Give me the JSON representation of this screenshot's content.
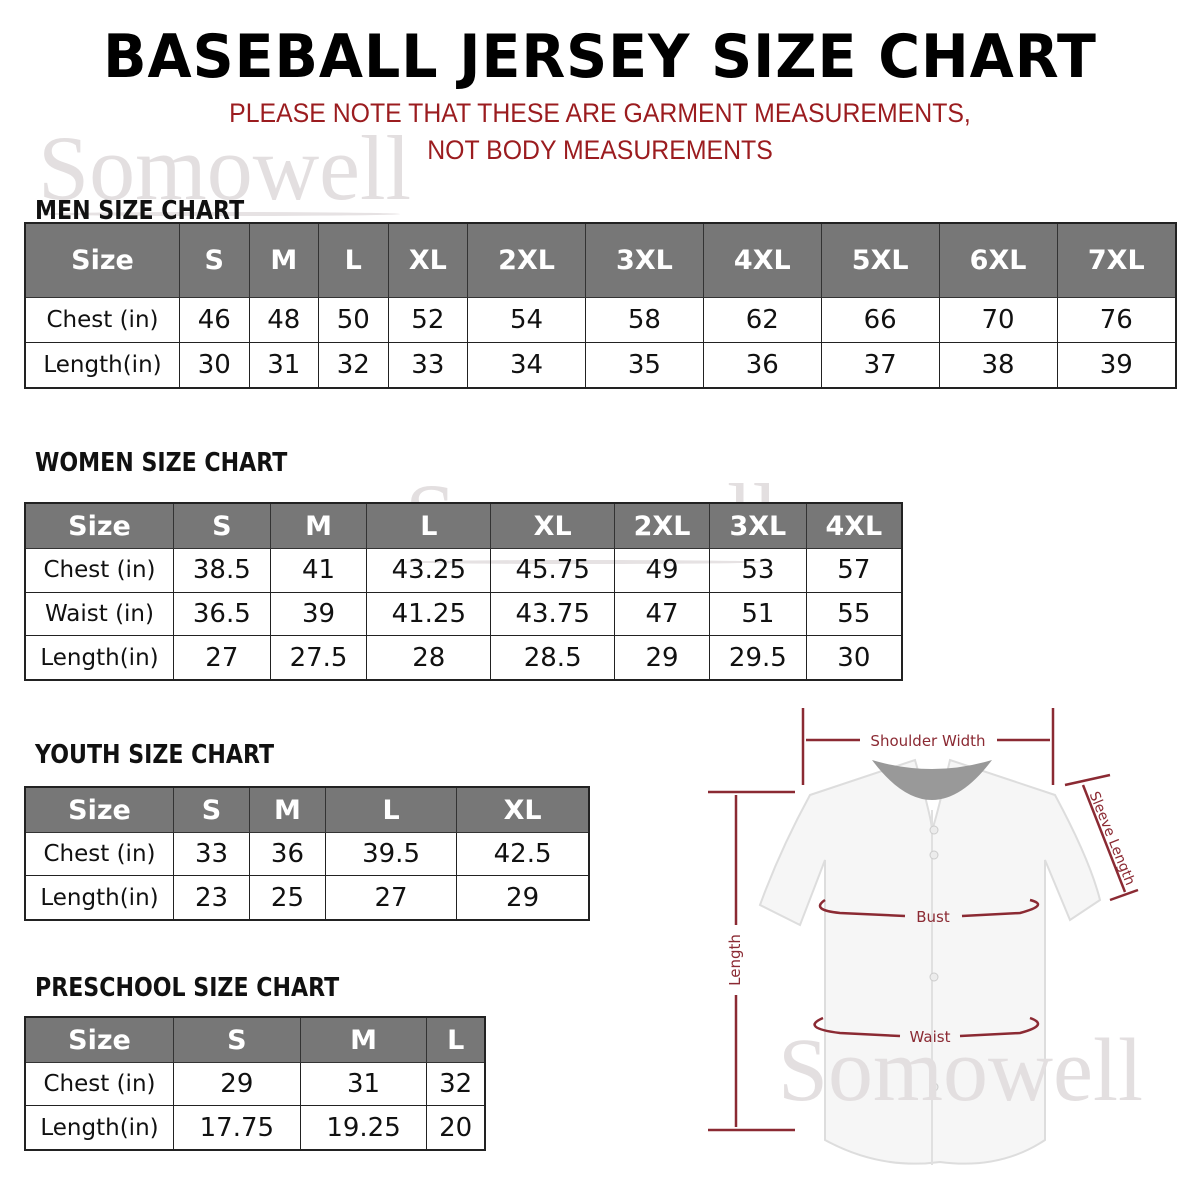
{
  "title": "BASEBALL JERSEY SIZE CHART",
  "note_line1": "PLEASE NOTE THAT THESE ARE GARMENT MEASUREMENTS,",
  "note_line2": "NOT BODY MEASUREMENTS",
  "watermark": "Somowell",
  "colors": {
    "header_bg": "#777777",
    "accent": "#9b1c1f",
    "diagram": "#8b2a33"
  },
  "tables": {
    "men": {
      "heading": "MEN SIZE CHART",
      "header": [
        "Size",
        "S",
        "M",
        "L",
        "XL",
        "2XL",
        "3XL",
        "4XL",
        "5XL",
        "6XL",
        "7XL"
      ],
      "rows": [
        [
          "Chest (in)",
          "46",
          "48",
          "50",
          "52",
          "54",
          "58",
          "62",
          "66",
          "70",
          "76"
        ],
        [
          "Length(in)",
          "30",
          "31",
          "32",
          "33",
          "34",
          "35",
          "36",
          "37",
          "38",
          "39"
        ]
      ]
    },
    "women": {
      "heading": "WOMEN SIZE CHART",
      "header": [
        "Size",
        "S",
        "M",
        "L",
        "XL",
        "2XL",
        "3XL",
        "4XL"
      ],
      "rows": [
        [
          "Chest (in)",
          "38.5",
          "41",
          "43.25",
          "45.75",
          "49",
          "53",
          "57"
        ],
        [
          "Waist (in)",
          "36.5",
          "39",
          "41.25",
          "43.75",
          "47",
          "51",
          "55"
        ],
        [
          "Length(in)",
          "27",
          "27.5",
          "28",
          "28.5",
          "29",
          "29.5",
          "30"
        ]
      ]
    },
    "youth": {
      "heading": "YOUTH SIZE CHART",
      "header": [
        "Size",
        "S",
        "M",
        "L",
        "XL"
      ],
      "rows": [
        [
          "Chest (in)",
          "33",
          "36",
          "39.5",
          "42.5"
        ],
        [
          "Length(in)",
          "23",
          "25",
          "27",
          "29"
        ]
      ]
    },
    "preschool": {
      "heading": "PRESCHOOL SIZE CHART",
      "header": [
        "Size",
        "S",
        "M",
        "L"
      ],
      "rows": [
        [
          "Chest (in)",
          "29",
          "31",
          "32"
        ],
        [
          "Length(in)",
          "17.75",
          "19.25",
          "20"
        ]
      ]
    }
  },
  "diagram": {
    "shoulder_width": "Shoulder Width",
    "sleeve_length": "Sleeve Length",
    "length": "Length",
    "bust": "Bust",
    "waist": "Waist"
  }
}
